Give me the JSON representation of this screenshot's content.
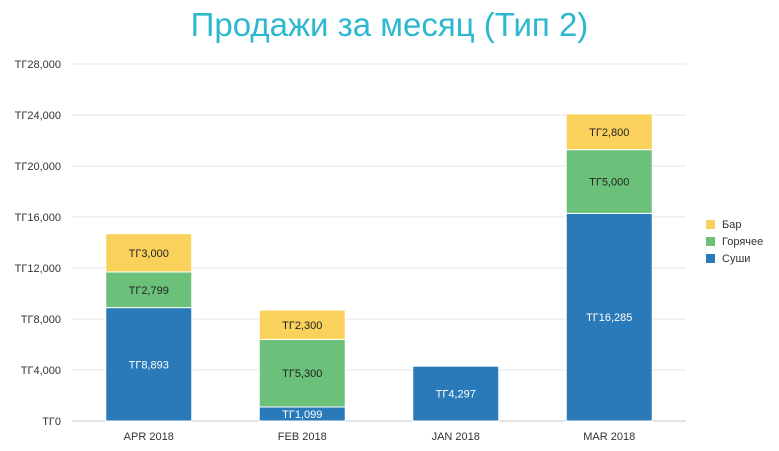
{
  "chart_data": {
    "type": "bar",
    "stacked": true,
    "title": "Продажи за месяц (Тип 2)",
    "categories": [
      "APR 2018",
      "FEB 2018",
      "JAN 2018",
      "MAR 2018"
    ],
    "series": [
      {
        "name": "Суши",
        "color": "#2a7ab9",
        "values": [
          8893,
          1099,
          4297,
          16285
        ],
        "labels": [
          "ТГ8,893",
          "ТГ1,099",
          "ТГ4,297",
          "ТГ16,285"
        ]
      },
      {
        "name": "Горячее",
        "color": "#6cc17a",
        "values": [
          2799,
          5300,
          null,
          5000
        ],
        "labels": [
          "ТГ2,799",
          "ТГ5,300",
          "",
          "ТГ5,000"
        ]
      },
      {
        "name": "Бар",
        "color": "#fad25b",
        "values": [
          3000,
          2300,
          null,
          2800
        ],
        "labels": [
          "ТГ3,000",
          "ТГ2,300",
          "",
          "ТГ2,800"
        ]
      }
    ],
    "ylim": [
      0,
      28000
    ],
    "yticks": [
      0,
      4000,
      8000,
      12000,
      16000,
      20000,
      24000,
      28000
    ],
    "ytick_labels": [
      "ТГ0",
      "ТГ4,000",
      "ТГ8,000",
      "ТГ12,000",
      "ТГ16,000",
      "ТГ20,000",
      "ТГ24,000",
      "ТГ28,000"
    ],
    "legend_order": [
      "Бар",
      "Горячее",
      "Суши"
    ],
    "legend_position": "right",
    "grid": true
  }
}
